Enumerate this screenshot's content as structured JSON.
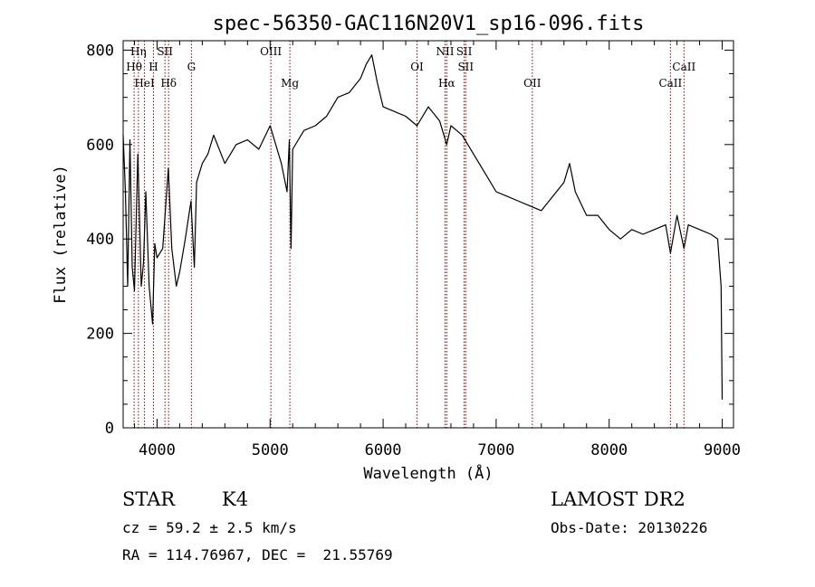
{
  "chart_data": {
    "type": "line",
    "title": "spec-56350-GAC116N20V1_sp16-096.fits",
    "xlabel": "Wavelength (Å)",
    "ylabel": "Flux (relative)",
    "xlim": [
      3700,
      9100
    ],
    "ylim": [
      0,
      820
    ],
    "xticks": [
      4000,
      5000,
      6000,
      7000,
      8000,
      9000
    ],
    "yticks": [
      0,
      200,
      400,
      600,
      800
    ],
    "grid": false,
    "line_color": "#000000",
    "marker_color": "#8b0000",
    "series": [
      {
        "x": [
          3700,
          3720,
          3740,
          3760,
          3780,
          3800,
          3830,
          3860,
          3880,
          3900,
          3930,
          3960,
          3980,
          4000,
          4050,
          4100,
          4130,
          4170,
          4200,
          4250,
          4300,
          4330,
          4350,
          4400,
          4450,
          4500,
          4600,
          4700,
          4800,
          4900,
          5000,
          5050,
          5100,
          5150,
          5170,
          5185,
          5200,
          5300,
          5400,
          5500,
          5600,
          5700,
          5800,
          5850,
          5900,
          5950,
          6000,
          6100,
          6200,
          6300,
          6400,
          6500,
          6563,
          6600,
          6700,
          6800,
          6900,
          7000,
          7100,
          7200,
          7300,
          7400,
          7500,
          7600,
          7650,
          7700,
          7800,
          7900,
          8000,
          8100,
          8200,
          8300,
          8400,
          8500,
          8542,
          8600,
          8662,
          8700,
          8800,
          8900,
          8960,
          8990,
          9000
        ],
        "y": [
          620,
          500,
          300,
          610,
          340,
          290,
          580,
          300,
          350,
          500,
          300,
          220,
          390,
          360,
          380,
          550,
          380,
          300,
          330,
          400,
          480,
          340,
          520,
          560,
          580,
          620,
          560,
          600,
          610,
          590,
          640,
          600,
          560,
          500,
          610,
          380,
          590,
          630,
          640,
          660,
          700,
          710,
          740,
          770,
          790,
          730,
          680,
          670,
          660,
          640,
          680,
          650,
          600,
          640,
          620,
          580,
          540,
          500,
          490,
          480,
          470,
          460,
          490,
          520,
          560,
          500,
          450,
          450,
          420,
          400,
          420,
          410,
          420,
          430,
          370,
          450,
          380,
          430,
          420,
          410,
          400,
          300,
          60
        ]
      }
    ],
    "lines": [
      {
        "name": "Hη",
        "x": 3835,
        "row": 1
      },
      {
        "name": "Hθ",
        "x": 3797,
        "row": 2
      },
      {
        "name": "HeI",
        "x": 3889,
        "row": 3
      },
      {
        "name": "H",
        "x": 3968,
        "row": 2
      },
      {
        "name": "SII",
        "x": 4070,
        "row": 1
      },
      {
        "name": "Hδ",
        "x": 4102,
        "row": 3
      },
      {
        "name": "G",
        "x": 4304,
        "row": 2
      },
      {
        "name": "OIII",
        "x": 5007,
        "row": 1
      },
      {
        "name": "Mg",
        "x": 5175,
        "row": 3
      },
      {
        "name": "OI",
        "x": 6300,
        "row": 2
      },
      {
        "name": "NII",
        "x": 6548,
        "row": 1
      },
      {
        "name": "Hα",
        "x": 6563,
        "row": 3
      },
      {
        "name": "SII",
        "x": 6717,
        "row": 1
      },
      {
        "name": "SII",
        "x": 6731,
        "row": 2
      },
      {
        "name": "OII",
        "x": 7320,
        "row": 3
      },
      {
        "name": "CaII",
        "x": 8542,
        "row": 3
      },
      {
        "name": "CaII",
        "x": 8662,
        "row": 2
      }
    ]
  },
  "info": {
    "object_class": "STAR",
    "subclass": "K4",
    "survey": "LAMOST DR2",
    "redshift": "cz = 59.2 ± 2.5 km/s",
    "obs_date": "Obs-Date: 20130226",
    "coords": "RA = 114.76967, DEC =  21.55769"
  }
}
